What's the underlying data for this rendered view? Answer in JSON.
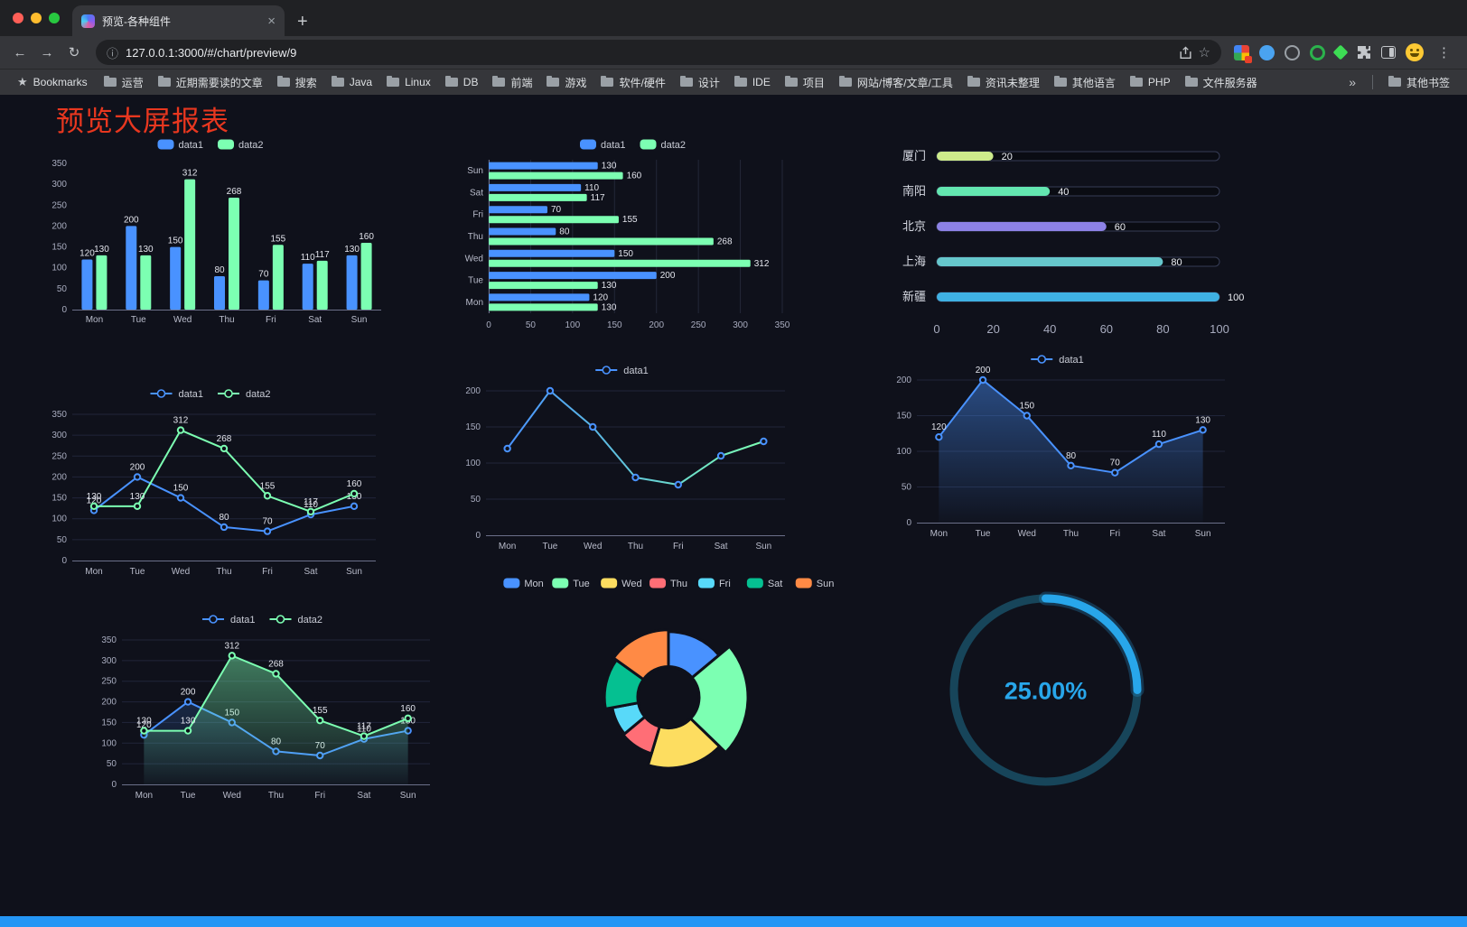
{
  "browser": {
    "traffic_lights": {
      "close": "#ff5f57",
      "minimize": "#febc2e",
      "zoom": "#28c840"
    },
    "tab": {
      "title": "预览-各种组件",
      "close_glyph": "×",
      "new_tab_glyph": "+"
    },
    "toolbar": {
      "back_glyph": "←",
      "forward_glyph": "→",
      "reload_glyph": "↻",
      "info_glyph": "ⓘ",
      "url": "127.0.0.1:3000/#/chart/preview/9",
      "star_glyph": "☆",
      "menu_glyph": "⋮"
    },
    "bookmarks_bar": {
      "star_glyph": "★",
      "bookmarks_label": "Bookmarks",
      "items": [
        "运营",
        "近期需要读的文章",
        "搜索",
        "Java",
        "Linux",
        "DB",
        "前端",
        "游戏",
        "软件/硬件",
        "设计",
        "IDE",
        "项目",
        "网站/博客/文章/工具",
        "资讯未整理",
        "其他语言",
        "PHP",
        "文件服务器"
      ],
      "overflow_glyph": "»",
      "other_bookmarks_label": "其他书签"
    }
  },
  "page": {
    "title": "预览大屏报表",
    "title_color": "#e8371f",
    "background": "#0f111b",
    "footer_bar_color": "#2496f5"
  },
  "chart_data": [
    {
      "type": "bar",
      "legend": [
        {
          "label": "data1",
          "color": "#4992ff",
          "style": "rect"
        },
        {
          "label": "data2",
          "color": "#7cffb2",
          "style": "rect"
        }
      ],
      "categories": [
        "Mon",
        "Tue",
        "Wed",
        "Thu",
        "Fri",
        "Sat",
        "Sun"
      ],
      "series": [
        {
          "name": "data1",
          "color": "#4992ff",
          "values": [
            120,
            200,
            150,
            80,
            70,
            110,
            130
          ]
        },
        {
          "name": "data2",
          "color": "#7cffb2",
          "values": [
            130,
            130,
            312,
            268,
            155,
            117,
            160
          ]
        }
      ],
      "ylim": [
        0,
        350
      ],
      "ytick": 50,
      "labels": true
    },
    {
      "type": "hbar",
      "legend": [
        {
          "label": "data1",
          "color": "#4992ff",
          "style": "rect"
        },
        {
          "label": "data2",
          "color": "#7cffb2",
          "style": "rect"
        }
      ],
      "categories": [
        "Mon",
        "Tue",
        "Wed",
        "Thu",
        "Fri",
        "Sat",
        "Sun"
      ],
      "series": [
        {
          "name": "data1",
          "color": "#4992ff",
          "values": [
            120,
            200,
            150,
            80,
            70,
            110,
            130
          ]
        },
        {
          "name": "data2",
          "color": "#7cffb2",
          "values": [
            130,
            130,
            312,
            268,
            155,
            117,
            160
          ]
        }
      ],
      "xlim": [
        0,
        350
      ],
      "xtick": 50,
      "labels": true
    },
    {
      "type": "progress",
      "rows": [
        {
          "label": "厦门",
          "value": 20,
          "color": "#cdeb8b"
        },
        {
          "label": "南阳",
          "value": 40,
          "color": "#63e6b0"
        },
        {
          "label": "北京",
          "value": 60,
          "color": "#8d82e6"
        },
        {
          "label": "上海",
          "value": 80,
          "color": "#66c7cc"
        },
        {
          "label": "新疆",
          "value": 100,
          "color": "#3fb1e3"
        }
      ],
      "xlim": [
        0,
        100
      ],
      "xticks": [
        0,
        20,
        40,
        60,
        80,
        100
      ]
    },
    {
      "type": "line",
      "legend": [
        {
          "label": "data1",
          "color": "#4992ff",
          "style": "line"
        },
        {
          "label": "data2",
          "color": "#7cffb2",
          "style": "line"
        }
      ],
      "categories": [
        "Mon",
        "Tue",
        "Wed",
        "Thu",
        "Fri",
        "Sat",
        "Sun"
      ],
      "series": [
        {
          "name": "data1",
          "color": "#4992ff",
          "values": [
            120,
            200,
            150,
            80,
            70,
            110,
            130
          ]
        },
        {
          "name": "data2",
          "color": "#7cffb2",
          "values": [
            130,
            130,
            312,
            268,
            155,
            117,
            160
          ]
        }
      ],
      "ylim": [
        0,
        350
      ],
      "ytick": 50,
      "labels": true
    },
    {
      "type": "line",
      "legend": [
        {
          "label": "data1",
          "color": "#4992ff",
          "style": "line"
        }
      ],
      "categories": [
        "Mon",
        "Tue",
        "Wed",
        "Thu",
        "Fri",
        "Sat",
        "Sun"
      ],
      "series": [
        {
          "name": "data1",
          "color": "#4992ff",
          "gradient": [
            "#4992ff",
            "#7cffb2"
          ],
          "values": [
            120,
            200,
            150,
            80,
            70,
            110,
            130
          ]
        }
      ],
      "ylim": [
        0,
        200
      ],
      "ytick": 50,
      "labels": false
    },
    {
      "type": "line",
      "legend": [
        {
          "label": "data1",
          "color": "#4992ff",
          "style": "line"
        }
      ],
      "categories": [
        "Mon",
        "Tue",
        "Wed",
        "Thu",
        "Fri",
        "Sat",
        "Sun"
      ],
      "series": [
        {
          "name": "data1",
          "color": "#4992ff",
          "values": [
            120,
            200,
            150,
            80,
            70,
            110,
            130
          ],
          "area": true,
          "area_opacity": 0.45
        }
      ],
      "ylim": [
        0,
        200
      ],
      "ytick": 50,
      "labels": true
    },
    {
      "type": "line",
      "legend": [
        {
          "label": "data1",
          "color": "#4992ff",
          "style": "line"
        },
        {
          "label": "data2",
          "color": "#7cffb2",
          "style": "line"
        }
      ],
      "categories": [
        "Mon",
        "Tue",
        "Wed",
        "Thu",
        "Fri",
        "Sat",
        "Sun"
      ],
      "series": [
        {
          "name": "data1",
          "color": "#4992ff",
          "values": [
            120,
            200,
            150,
            80,
            70,
            110,
            130
          ],
          "area": true,
          "area_opacity": 0.18
        },
        {
          "name": "data2",
          "color": "#7cffb2",
          "values": [
            130,
            130,
            312,
            268,
            155,
            117,
            160
          ],
          "area": true,
          "area_opacity": 0.45
        }
      ],
      "ylim": [
        0,
        350
      ],
      "ytick": 50,
      "labels": true
    },
    {
      "type": "rose",
      "legend": [
        {
          "label": "Mon",
          "color": "#4992ff",
          "style": "rect"
        },
        {
          "label": "Tue",
          "color": "#7cffb2",
          "style": "rect"
        },
        {
          "label": "Wed",
          "color": "#fddd60",
          "style": "rect"
        },
        {
          "label": "Thu",
          "color": "#ff6e76",
          "style": "rect"
        },
        {
          "label": "Fri",
          "color": "#58d9f9",
          "style": "rect"
        },
        {
          "label": "Sat",
          "color": "#05c091",
          "style": "rect"
        },
        {
          "label": "Sun",
          "color": "#ff8a45",
          "style": "rect"
        }
      ],
      "categories": [
        "Mon",
        "Tue",
        "Wed",
        "Thu",
        "Fri",
        "Sat",
        "Sun"
      ],
      "values": [
        120,
        200,
        150,
        80,
        70,
        110,
        130
      ],
      "colors": [
        "#4992ff",
        "#7cffb2",
        "#fddd60",
        "#ff6e76",
        "#58d9f9",
        "#05c091",
        "#ff8a45"
      ]
    },
    {
      "type": "gauge",
      "value": 25,
      "label": "25.00%",
      "color": "#28a6ea",
      "track_color": "#17455a"
    }
  ]
}
